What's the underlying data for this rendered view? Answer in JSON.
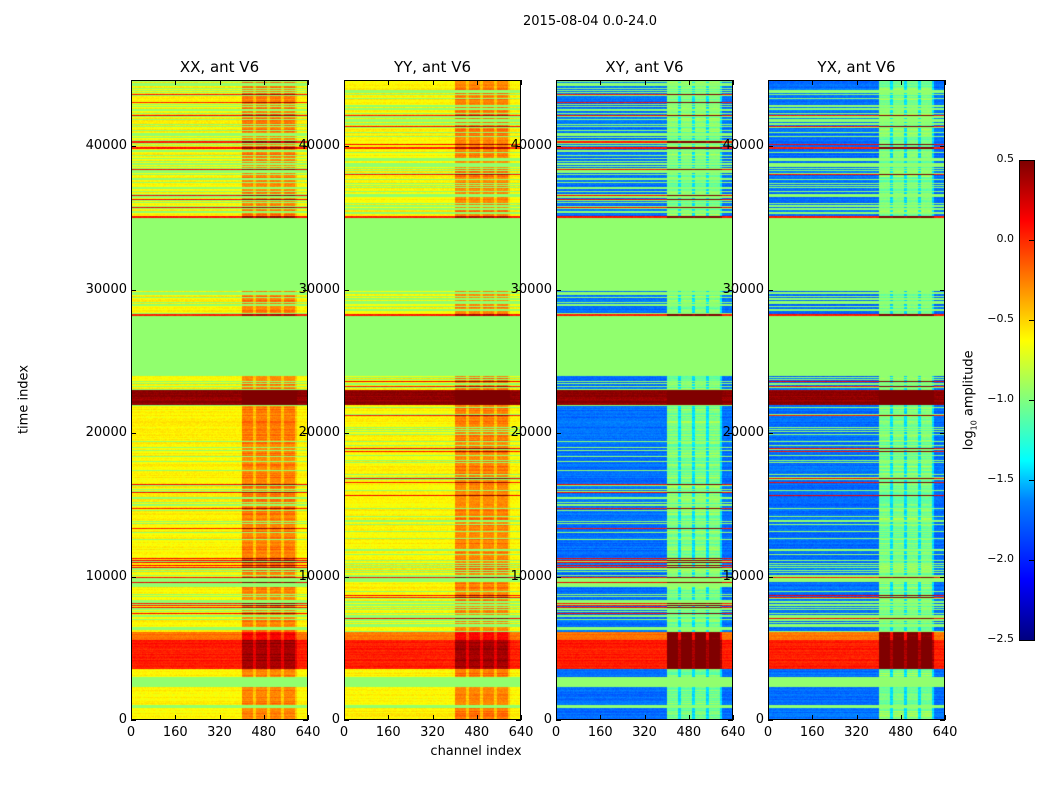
{
  "figure_title": "2015-08-04 0.0-24.0",
  "chart_data": {
    "type": "heatmap",
    "title": "2015-08-04 0.0-24.0",
    "xlabel": "channel index",
    "ylabel": "time index",
    "xlim": [
      0,
      640
    ],
    "ylim": [
      0,
      44600
    ],
    "xticks": [
      "0",
      "160",
      "320",
      "480",
      "640"
    ],
    "yticks": [
      "0",
      "10000",
      "20000",
      "30000",
      "40000"
    ],
    "panels": [
      {
        "title": "XX, ant V6",
        "kind": "parallel"
      },
      {
        "title": "YY, ant V6",
        "kind": "parallel"
      },
      {
        "title": "XY, ant V6",
        "kind": "cross"
      },
      {
        "title": "YX, ant V6",
        "kind": "cross"
      }
    ],
    "colorbar": {
      "label": "log₁₀ amplitude",
      "label_base": "log",
      "label_sub": "10",
      "label_rest": " amplitude",
      "range": [
        -2.5,
        0.5
      ],
      "ticks": [
        "0.5",
        "0.0",
        "−0.5",
        "−1.0",
        "−1.5",
        "−2.0",
        "−2.5"
      ],
      "colormap": "jet"
    },
    "base_level": {
      "parallel": -0.6,
      "cross": -1.8
    },
    "flagged_level": -0.95,
    "rfi_channels": [
      [
        400,
        440
      ],
      [
        450,
        490
      ],
      [
        500,
        540
      ],
      [
        550,
        590
      ]
    ],
    "rfi_boost": {
      "parallel": 0.5,
      "cross": 1.1
    },
    "time_segments": [
      {
        "t": [
          0,
          900
        ],
        "type": "base"
      },
      {
        "t": [
          900,
          1100
        ],
        "type": "flagged"
      },
      {
        "t": [
          1100,
          2300
        ],
        "type": "base"
      },
      {
        "t": [
          2300,
          3000
        ],
        "type": "flagged"
      },
      {
        "t": [
          3000,
          3600
        ],
        "type": "base"
      },
      {
        "t": [
          3600,
          5600
        ],
        "type": "level",
        "value": 0.05
      },
      {
        "t": [
          5600,
          6200
        ],
        "type": "level",
        "value": -0.2
      },
      {
        "t": [
          6200,
          11200
        ],
        "type": "striped"
      },
      {
        "t": [
          11200,
          22000
        ],
        "type": "striped_sparse"
      },
      {
        "t": [
          22000,
          23000
        ],
        "type": "level",
        "value": 0.45
      },
      {
        "t": [
          23000,
          24000
        ],
        "type": "striped"
      },
      {
        "t": [
          24000,
          28200
        ],
        "type": "flagged"
      },
      {
        "t": [
          28200,
          28350
        ],
        "type": "level",
        "value": 0.05
      },
      {
        "t": [
          28350,
          30000
        ],
        "type": "striped"
      },
      {
        "t": [
          30000,
          35000
        ],
        "type": "flagged"
      },
      {
        "t": [
          35000,
          35150
        ],
        "type": "level",
        "value": 0.05
      },
      {
        "t": [
          35150,
          39800
        ],
        "type": "striped"
      },
      {
        "t": [
          39800,
          40000
        ],
        "type": "level",
        "value": 0.05
      },
      {
        "t": [
          40000,
          44600
        ],
        "type": "striped"
      }
    ]
  }
}
